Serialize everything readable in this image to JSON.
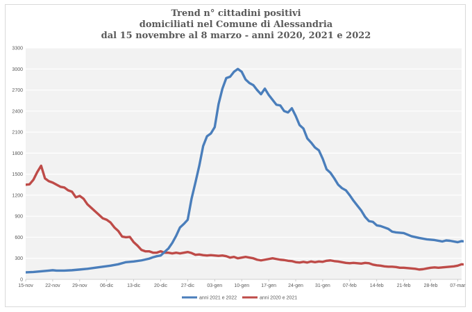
{
  "chart_data": {
    "type": "line",
    "title": [
      "Trend n° cittadini positivi",
      "domiciliati nel Comune di Alessandria",
      "dal 15 novembre al 8 marzo - anni 2020, 2021 e 2022"
    ],
    "xlabel": "",
    "ylabel": "",
    "ylim": [
      0,
      3300
    ],
    "yticks": [
      0,
      300,
      600,
      900,
      1200,
      1500,
      1800,
      2100,
      2400,
      2700,
      3000,
      3300
    ],
    "xlim": [
      0,
      113
    ],
    "xticks": [
      {
        "day": 0,
        "label": "15-nov"
      },
      {
        "day": 7,
        "label": "22-nov"
      },
      {
        "day": 14,
        "label": "29-nov"
      },
      {
        "day": 21,
        "label": "06-dic"
      },
      {
        "day": 28,
        "label": "13-dic"
      },
      {
        "day": 35,
        "label": "20-dic"
      },
      {
        "day": 42,
        "label": "27-dic"
      },
      {
        "day": 49,
        "label": "03-gen"
      },
      {
        "day": 56,
        "label": "10-gen"
      },
      {
        "day": 63,
        "label": "17-gen"
      },
      {
        "day": 70,
        "label": "24-gen"
      },
      {
        "day": 77,
        "label": "31-gen"
      },
      {
        "day": 84,
        "label": "07-feb"
      },
      {
        "day": 91,
        "label": "14-feb"
      },
      {
        "day": 98,
        "label": "21-feb"
      },
      {
        "day": 105,
        "label": "28-feb"
      },
      {
        "day": 112,
        "label": "07-mar"
      }
    ],
    "grid": true,
    "legend_position": "bottom",
    "series": [
      {
        "name": "anni 2021 e 2022",
        "color": "#4a7ebb",
        "points": [
          [
            0,
            100
          ],
          [
            2,
            105
          ],
          [
            4,
            115
          ],
          [
            6,
            125
          ],
          [
            7,
            130
          ],
          [
            8,
            125
          ],
          [
            10,
            125
          ],
          [
            12,
            130
          ],
          [
            14,
            140
          ],
          [
            16,
            150
          ],
          [
            18,
            165
          ],
          [
            20,
            180
          ],
          [
            22,
            195
          ],
          [
            24,
            215
          ],
          [
            26,
            245
          ],
          [
            28,
            255
          ],
          [
            30,
            270
          ],
          [
            32,
            295
          ],
          [
            33,
            315
          ],
          [
            34,
            330
          ],
          [
            35,
            340
          ],
          [
            36,
            390
          ],
          [
            37,
            440
          ],
          [
            38,
            520
          ],
          [
            39,
            620
          ],
          [
            40,
            740
          ],
          [
            41,
            790
          ],
          [
            42,
            850
          ],
          [
            43,
            1150
          ],
          [
            44,
            1380
          ],
          [
            45,
            1620
          ],
          [
            46,
            1900
          ],
          [
            47,
            2040
          ],
          [
            48,
            2080
          ],
          [
            49,
            2170
          ],
          [
            50,
            2500
          ],
          [
            51,
            2720
          ],
          [
            52,
            2870
          ],
          [
            53,
            2890
          ],
          [
            54,
            2960
          ],
          [
            55,
            3000
          ],
          [
            56,
            2960
          ],
          [
            57,
            2850
          ],
          [
            58,
            2800
          ],
          [
            59,
            2770
          ],
          [
            60,
            2700
          ],
          [
            61,
            2640
          ],
          [
            62,
            2720
          ],
          [
            63,
            2630
          ],
          [
            64,
            2560
          ],
          [
            65,
            2490
          ],
          [
            66,
            2480
          ],
          [
            67,
            2400
          ],
          [
            68,
            2380
          ],
          [
            69,
            2440
          ],
          [
            70,
            2330
          ],
          [
            71,
            2200
          ],
          [
            72,
            2150
          ],
          [
            73,
            2010
          ],
          [
            74,
            1950
          ],
          [
            75,
            1880
          ],
          [
            76,
            1840
          ],
          [
            77,
            1720
          ],
          [
            78,
            1570
          ],
          [
            79,
            1520
          ],
          [
            80,
            1440
          ],
          [
            81,
            1350
          ],
          [
            82,
            1300
          ],
          [
            83,
            1270
          ],
          [
            84,
            1200
          ],
          [
            85,
            1120
          ],
          [
            86,
            1050
          ],
          [
            87,
            980
          ],
          [
            88,
            890
          ],
          [
            89,
            830
          ],
          [
            90,
            820
          ],
          [
            91,
            770
          ],
          [
            92,
            760
          ],
          [
            93,
            740
          ],
          [
            94,
            720
          ],
          [
            95,
            680
          ],
          [
            96,
            670
          ],
          [
            98,
            660
          ],
          [
            100,
            615
          ],
          [
            102,
            590
          ],
          [
            104,
            570
          ],
          [
            106,
            560
          ],
          [
            108,
            540
          ],
          [
            109,
            555
          ],
          [
            110,
            550
          ],
          [
            112,
            530
          ],
          [
            113,
            545
          ],
          [
            114,
            540
          ]
        ]
      },
      {
        "name": "anni 2020 e 2021",
        "color": "#be4b48",
        "points": [
          [
            0,
            1350
          ],
          [
            1,
            1355
          ],
          [
            2,
            1420
          ],
          [
            3,
            1530
          ],
          [
            4,
            1620
          ],
          [
            5,
            1440
          ],
          [
            6,
            1400
          ],
          [
            7,
            1380
          ],
          [
            8,
            1350
          ],
          [
            9,
            1320
          ],
          [
            10,
            1310
          ],
          [
            11,
            1270
          ],
          [
            12,
            1250
          ],
          [
            13,
            1170
          ],
          [
            14,
            1190
          ],
          [
            15,
            1150
          ],
          [
            16,
            1070
          ],
          [
            17,
            1020
          ],
          [
            18,
            970
          ],
          [
            19,
            920
          ],
          [
            20,
            870
          ],
          [
            21,
            850
          ],
          [
            22,
            810
          ],
          [
            23,
            740
          ],
          [
            24,
            690
          ],
          [
            25,
            610
          ],
          [
            26,
            600
          ],
          [
            27,
            605
          ],
          [
            28,
            530
          ],
          [
            29,
            480
          ],
          [
            30,
            420
          ],
          [
            31,
            400
          ],
          [
            32,
            400
          ],
          [
            33,
            380
          ],
          [
            34,
            380
          ],
          [
            35,
            400
          ],
          [
            36,
            380
          ],
          [
            37,
            380
          ],
          [
            38,
            370
          ],
          [
            39,
            380
          ],
          [
            40,
            370
          ],
          [
            41,
            380
          ],
          [
            42,
            390
          ],
          [
            43,
            375
          ],
          [
            44,
            350
          ],
          [
            45,
            355
          ],
          [
            46,
            345
          ],
          [
            47,
            340
          ],
          [
            48,
            345
          ],
          [
            49,
            340
          ],
          [
            50,
            335
          ],
          [
            51,
            340
          ],
          [
            52,
            330
          ],
          [
            53,
            310
          ],
          [
            54,
            320
          ],
          [
            55,
            300
          ],
          [
            56,
            310
          ],
          [
            57,
            320
          ],
          [
            58,
            310
          ],
          [
            59,
            300
          ],
          [
            60,
            280
          ],
          [
            61,
            270
          ],
          [
            62,
            280
          ],
          [
            63,
            290
          ],
          [
            64,
            300
          ],
          [
            65,
            290
          ],
          [
            66,
            280
          ],
          [
            67,
            275
          ],
          [
            68,
            265
          ],
          [
            69,
            260
          ],
          [
            70,
            245
          ],
          [
            71,
            240
          ],
          [
            72,
            250
          ],
          [
            73,
            240
          ],
          [
            74,
            255
          ],
          [
            75,
            245
          ],
          [
            76,
            255
          ],
          [
            77,
            250
          ],
          [
            78,
            265
          ],
          [
            79,
            270
          ],
          [
            80,
            260
          ],
          [
            81,
            255
          ],
          [
            82,
            245
          ],
          [
            83,
            235
          ],
          [
            84,
            230
          ],
          [
            85,
            235
          ],
          [
            86,
            230
          ],
          [
            87,
            225
          ],
          [
            88,
            235
          ],
          [
            89,
            230
          ],
          [
            90,
            210
          ],
          [
            91,
            200
          ],
          [
            92,
            195
          ],
          [
            93,
            185
          ],
          [
            94,
            180
          ],
          [
            95,
            180
          ],
          [
            96,
            175
          ],
          [
            97,
            165
          ],
          [
            98,
            165
          ],
          [
            99,
            160
          ],
          [
            100,
            155
          ],
          [
            101,
            150
          ],
          [
            102,
            140
          ],
          [
            103,
            145
          ],
          [
            104,
            155
          ],
          [
            105,
            165
          ],
          [
            106,
            170
          ],
          [
            107,
            165
          ],
          [
            108,
            170
          ],
          [
            109,
            175
          ],
          [
            110,
            180
          ],
          [
            111,
            185
          ],
          [
            112,
            195
          ],
          [
            113,
            215
          ],
          [
            114,
            210
          ]
        ]
      }
    ]
  }
}
